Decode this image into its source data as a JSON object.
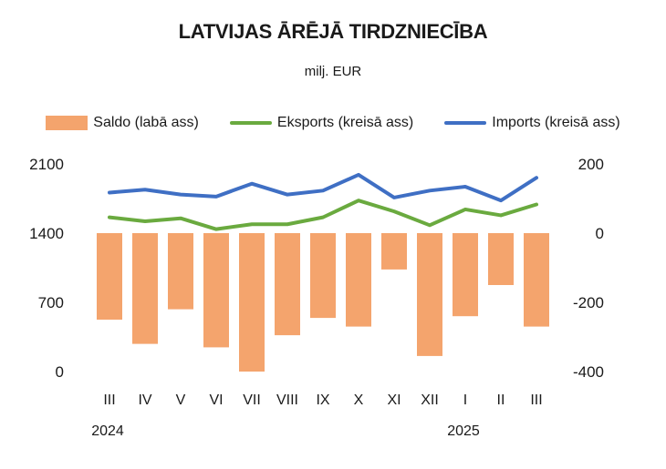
{
  "chart_data": {
    "type": "bar",
    "title": "LATVIJAS ĀRĒJĀ TIRDZNIECĪBA",
    "subtitle": "milj. EUR",
    "categories": [
      "III",
      "IV",
      "V",
      "VI",
      "VII",
      "VIII",
      "IX",
      "X",
      "XI",
      "XII",
      "I",
      "II",
      "III"
    ],
    "year_labels": [
      {
        "label": "2024",
        "category_index": 0
      },
      {
        "label": "2025",
        "category_index": 10
      }
    ],
    "legend_position": "top",
    "grid": false,
    "left_axis": {
      "ylim": [
        0,
        2100
      ],
      "ticks": [
        "0",
        "700",
        "1400",
        "2100"
      ]
    },
    "right_axis": {
      "ylim": [
        -400,
        200
      ],
      "ticks": [
        "-400",
        "-200",
        "0",
        "200"
      ]
    },
    "series": [
      {
        "name": "Saldo (labā ass)",
        "type": "bar",
        "axis": "right",
        "color": "#f4a46d",
        "values": [
          -250,
          -320,
          -220,
          -330,
          -400,
          -295,
          -245,
          -270,
          -105,
          -355,
          -240,
          -150,
          -270
        ]
      },
      {
        "name": "Eksports (kreisā ass)",
        "type": "line",
        "axis": "left",
        "color": "#6aaa3f",
        "values": [
          1560,
          1520,
          1550,
          1440,
          1490,
          1490,
          1560,
          1730,
          1620,
          1480,
          1640,
          1580,
          1690
        ]
      },
      {
        "name": "Imports (kreisā ass)",
        "type": "line",
        "axis": "left",
        "color": "#3f6fc4",
        "values": [
          1810,
          1840,
          1790,
          1770,
          1900,
          1790,
          1830,
          1990,
          1760,
          1830,
          1870,
          1730,
          1960
        ]
      }
    ]
  }
}
